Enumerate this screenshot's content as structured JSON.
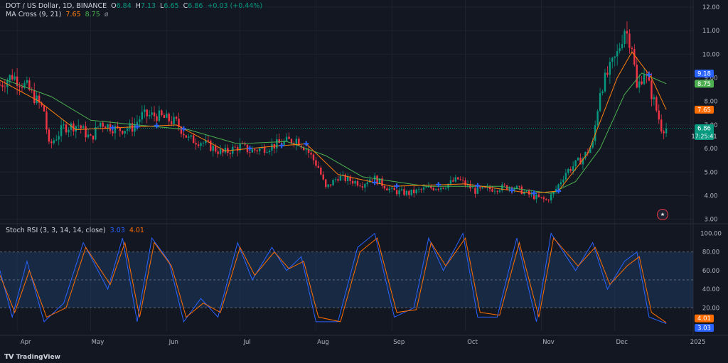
{
  "header": {
    "symbol": "DOT / US Dollar, 1D, BINANCE",
    "o_label": "O",
    "o": "6.84",
    "h_label": "H",
    "h": "7.13",
    "l_label": "L",
    "l": "6.65",
    "c_label": "C",
    "c": "6.86",
    "change": "+0.03 (+0.44%)"
  },
  "ma_legend": {
    "label": "MA Cross (9, 21)",
    "fast": "7.65",
    "slow": "8.75",
    "symbol": "ø"
  },
  "rsi_legend": {
    "label": "Stoch RSI (3, 3, 14, 14, close)",
    "k": "3.03",
    "d": "4.01"
  },
  "footer": {
    "brand": "TradingView",
    "logo": "TV"
  },
  "flag_icon": "us-flag-icon",
  "colors": {
    "background": "#131722",
    "up": "#089981",
    "down": "#f23645",
    "ma_fast": "#ff7f0e",
    "ma_slow": "#4caf50",
    "rsi_k": "#2962ff",
    "rsi_d": "#ff6d00",
    "cross_marker": "#2962ff",
    "rsi_band": "#1e3a5f"
  },
  "chart_data": [
    {
      "type": "candlestick",
      "title": "DOT / US Dollar, 1D, BINANCE",
      "x_ticks": [
        "Apr",
        "May",
        "Jun",
        "Jul",
        "Aug",
        "Sep",
        "Oct",
        "Nov",
        "Dec",
        "2025"
      ],
      "y_ticks": [
        "12.00",
        "11.00",
        "10.00",
        "9.00",
        "8.00",
        "7.00",
        "6.00",
        "5.00",
        "4.00",
        "3.00"
      ],
      "ylim": [
        2.9,
        12.3
      ],
      "x_range": [
        "2024-03-25",
        "2025-01-02"
      ],
      "price_path": [
        [
          "2024-03-25",
          8.7
        ],
        [
          "2024-03-30",
          9.1
        ],
        [
          "2024-04-05",
          8.6
        ],
        [
          "2024-04-12",
          7.6
        ],
        [
          "2024-04-14",
          6.1
        ],
        [
          "2024-04-20",
          6.9
        ],
        [
          "2024-04-26",
          7.0
        ],
        [
          "2024-05-01",
          6.4
        ],
        [
          "2024-05-05",
          7.1
        ],
        [
          "2024-05-12",
          6.8
        ],
        [
          "2024-05-18",
          6.9
        ],
        [
          "2024-05-22",
          7.4
        ],
        [
          "2024-05-28",
          7.4
        ],
        [
          "2024-06-05",
          7.1
        ],
        [
          "2024-06-10",
          6.4
        ],
        [
          "2024-06-15",
          6.3
        ],
        [
          "2024-06-24",
          5.8
        ],
        [
          "2024-07-01",
          6.1
        ],
        [
          "2024-07-05",
          5.9
        ],
        [
          "2024-07-10",
          6.0
        ],
        [
          "2024-07-20",
          6.3
        ],
        [
          "2024-07-24",
          6.4
        ],
        [
          "2024-07-28",
          6.0
        ],
        [
          "2024-08-02",
          5.2
        ],
        [
          "2024-08-05",
          4.3
        ],
        [
          "2024-08-10",
          4.8
        ],
        [
          "2024-08-20",
          4.5
        ],
        [
          "2024-08-24",
          4.8
        ],
        [
          "2024-09-01",
          4.2
        ],
        [
          "2024-09-08",
          4.1
        ],
        [
          "2024-09-15",
          4.3
        ],
        [
          "2024-09-22",
          4.4
        ],
        [
          "2024-09-28",
          4.7
        ],
        [
          "2024-10-05",
          4.2
        ],
        [
          "2024-10-12",
          4.3
        ],
        [
          "2024-10-20",
          4.4
        ],
        [
          "2024-10-28",
          4.0
        ],
        [
          "2024-11-03",
          3.8
        ],
        [
          "2024-11-06",
          4.1
        ],
        [
          "2024-11-11",
          5.0
        ],
        [
          "2024-11-18",
          5.6
        ],
        [
          "2024-11-22",
          6.2
        ],
        [
          "2024-11-25",
          8.5
        ],
        [
          "2024-12-02",
          10.0
        ],
        [
          "2024-12-05",
          11.1
        ],
        [
          "2024-12-08",
          10.4
        ],
        [
          "2024-12-10",
          8.5
        ],
        [
          "2024-12-13",
          9.3
        ],
        [
          "2024-12-17",
          8.0
        ],
        [
          "2024-12-20",
          6.9
        ],
        [
          "2024-12-22",
          6.86
        ]
      ],
      "ma_fast_path": [
        [
          "2024-03-25",
          8.9
        ],
        [
          "2024-04-10",
          8.0
        ],
        [
          "2024-04-25",
          6.8
        ],
        [
          "2024-05-15",
          6.9
        ],
        [
          "2024-06-05",
          7.0
        ],
        [
          "2024-06-25",
          5.9
        ],
        [
          "2024-07-15",
          6.1
        ],
        [
          "2024-07-28",
          6.2
        ],
        [
          "2024-08-10",
          4.9
        ],
        [
          "2024-09-01",
          4.4
        ],
        [
          "2024-10-01",
          4.5
        ],
        [
          "2024-10-28",
          4.1
        ],
        [
          "2024-11-08",
          4.2
        ],
        [
          "2024-11-20",
          5.8
        ],
        [
          "2024-12-02",
          9.0
        ],
        [
          "2024-12-08",
          10.1
        ],
        [
          "2024-12-16",
          9.0
        ],
        [
          "2024-12-22",
          7.65
        ]
      ],
      "ma_slow_path": [
        [
          "2024-03-25",
          9.0
        ],
        [
          "2024-04-15",
          8.2
        ],
        [
          "2024-05-01",
          7.2
        ],
        [
          "2024-05-20",
          7.0
        ],
        [
          "2024-06-10",
          6.8
        ],
        [
          "2024-06-30",
          6.2
        ],
        [
          "2024-07-20",
          6.3
        ],
        [
          "2024-08-05",
          5.7
        ],
        [
          "2024-08-20",
          4.8
        ],
        [
          "2024-09-15",
          4.4
        ],
        [
          "2024-10-15",
          4.4
        ],
        [
          "2024-11-05",
          4.1
        ],
        [
          "2024-11-15",
          4.6
        ],
        [
          "2024-11-25",
          6.0
        ],
        [
          "2024-12-05",
          8.3
        ],
        [
          "2024-12-12",
          9.2
        ],
        [
          "2024-12-22",
          8.75
        ]
      ],
      "cross_markers": [
        "2024-05-10",
        "2024-05-20",
        "2024-05-28",
        "2024-06-08",
        "2024-07-05",
        "2024-07-18",
        "2024-07-28",
        "2024-08-25",
        "2024-09-03",
        "2024-09-20",
        "2024-10-06",
        "2024-10-20",
        "2024-10-29",
        "2024-11-08",
        "2024-12-15"
      ],
      "last_price": "6.86",
      "countdown": "17:25:41",
      "price_labels": [
        {
          "value": "9.18",
          "color": "#2962ff"
        },
        {
          "value": "8.75",
          "color": "#4caf50"
        },
        {
          "value": "7.65",
          "color": "#ff6d00"
        },
        {
          "value": "6.86",
          "color": "#089981"
        }
      ]
    },
    {
      "type": "line",
      "title": "Stoch RSI (3, 3, 14, 14, close)",
      "y_ticks": [
        "100.00",
        "80.00",
        "60.00",
        "40.00",
        "20.00"
      ],
      "ylim": [
        -5,
        105
      ],
      "band": [
        20,
        80
      ],
      "series": [
        {
          "name": "K",
          "color": "#2962ff",
          "path": [
            [
              "2024-03-25",
              60
            ],
            [
              "2024-03-30",
              10
            ],
            [
              "2024-04-05",
              70
            ],
            [
              "2024-04-12",
              5
            ],
            [
              "2024-04-20",
              25
            ],
            [
              "2024-04-28",
              90
            ],
            [
              "2024-05-08",
              40
            ],
            [
              "2024-05-14",
              95
            ],
            [
              "2024-05-20",
              5
            ],
            [
              "2024-05-26",
              95
            ],
            [
              "2024-06-02",
              70
            ],
            [
              "2024-06-08",
              5
            ],
            [
              "2024-06-15",
              30
            ],
            [
              "2024-06-22",
              10
            ],
            [
              "2024-06-30",
              90
            ],
            [
              "2024-07-06",
              50
            ],
            [
              "2024-07-14",
              85
            ],
            [
              "2024-07-20",
              60
            ],
            [
              "2024-07-26",
              75
            ],
            [
              "2024-08-01",
              5
            ],
            [
              "2024-08-10",
              5
            ],
            [
              "2024-08-18",
              85
            ],
            [
              "2024-08-25",
              100
            ],
            [
              "2024-09-02",
              10
            ],
            [
              "2024-09-10",
              20
            ],
            [
              "2024-09-16",
              95
            ],
            [
              "2024-09-22",
              60
            ],
            [
              "2024-09-30",
              100
            ],
            [
              "2024-10-06",
              10
            ],
            [
              "2024-10-14",
              10
            ],
            [
              "2024-10-22",
              95
            ],
            [
              "2024-10-30",
              5
            ],
            [
              "2024-11-05",
              100
            ],
            [
              "2024-11-15",
              60
            ],
            [
              "2024-11-22",
              90
            ],
            [
              "2024-11-28",
              40
            ],
            [
              "2024-12-05",
              70
            ],
            [
              "2024-12-10",
              80
            ],
            [
              "2024-12-15",
              10
            ],
            [
              "2024-12-22",
              3.03
            ]
          ]
        },
        {
          "name": "D",
          "color": "#ff6d00",
          "path": [
            [
              "2024-03-25",
              55
            ],
            [
              "2024-03-31",
              15
            ],
            [
              "2024-04-06",
              60
            ],
            [
              "2024-04-13",
              10
            ],
            [
              "2024-04-21",
              20
            ],
            [
              "2024-04-29",
              85
            ],
            [
              "2024-05-09",
              45
            ],
            [
              "2024-05-15",
              90
            ],
            [
              "2024-05-21",
              10
            ],
            [
              "2024-05-27",
              90
            ],
            [
              "2024-06-03",
              65
            ],
            [
              "2024-06-09",
              10
            ],
            [
              "2024-06-16",
              25
            ],
            [
              "2024-06-23",
              15
            ],
            [
              "2024-07-01",
              85
            ],
            [
              "2024-07-07",
              55
            ],
            [
              "2024-07-15",
              80
            ],
            [
              "2024-07-21",
              62
            ],
            [
              "2024-07-27",
              70
            ],
            [
              "2024-08-02",
              10
            ],
            [
              "2024-08-11",
              5
            ],
            [
              "2024-08-19",
              80
            ],
            [
              "2024-08-26",
              95
            ],
            [
              "2024-09-03",
              15
            ],
            [
              "2024-09-11",
              18
            ],
            [
              "2024-09-17",
              90
            ],
            [
              "2024-09-23",
              65
            ],
            [
              "2024-10-01",
              95
            ],
            [
              "2024-10-07",
              15
            ],
            [
              "2024-10-15",
              12
            ],
            [
              "2024-10-23",
              90
            ],
            [
              "2024-10-31",
              10
            ],
            [
              "2024-11-06",
              95
            ],
            [
              "2024-11-16",
              65
            ],
            [
              "2024-11-23",
              85
            ],
            [
              "2024-11-29",
              45
            ],
            [
              "2024-12-06",
              65
            ],
            [
              "2024-12-11",
              75
            ],
            [
              "2024-12-16",
              15
            ],
            [
              "2024-12-22",
              4.01
            ]
          ]
        }
      ],
      "last_values": [
        {
          "value": "4.01",
          "color": "#ff6d00"
        },
        {
          "value": "3.03",
          "color": "#2962ff"
        }
      ]
    }
  ]
}
